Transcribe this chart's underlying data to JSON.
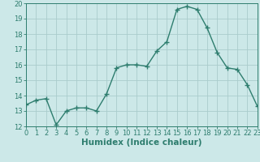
{
  "x": [
    0,
    1,
    2,
    3,
    4,
    5,
    6,
    7,
    8,
    9,
    10,
    11,
    12,
    13,
    14,
    15,
    16,
    17,
    18,
    19,
    20,
    21,
    22,
    23
  ],
  "y": [
    13.4,
    13.7,
    13.8,
    12.1,
    13.0,
    13.2,
    13.2,
    13.0,
    14.1,
    15.8,
    16.0,
    16.0,
    15.9,
    16.9,
    17.5,
    19.6,
    19.8,
    19.6,
    18.4,
    16.8,
    15.8,
    15.7,
    14.7,
    13.3
  ],
  "line_color": "#2e7d6e",
  "marker": "+",
  "marker_size": 4,
  "bg_color": "#cce8e8",
  "grid_color": "#aacccc",
  "xlabel": "Humidex (Indice chaleur)",
  "xlim": [
    0,
    23
  ],
  "ylim": [
    12,
    20
  ],
  "yticks": [
    12,
    13,
    14,
    15,
    16,
    17,
    18,
    19,
    20
  ],
  "xticks": [
    0,
    1,
    2,
    3,
    4,
    5,
    6,
    7,
    8,
    9,
    10,
    11,
    12,
    13,
    14,
    15,
    16,
    17,
    18,
    19,
    20,
    21,
    22,
    23
  ],
  "xlabel_fontsize": 7.5,
  "tick_fontsize": 6.0,
  "linewidth": 1.0
}
